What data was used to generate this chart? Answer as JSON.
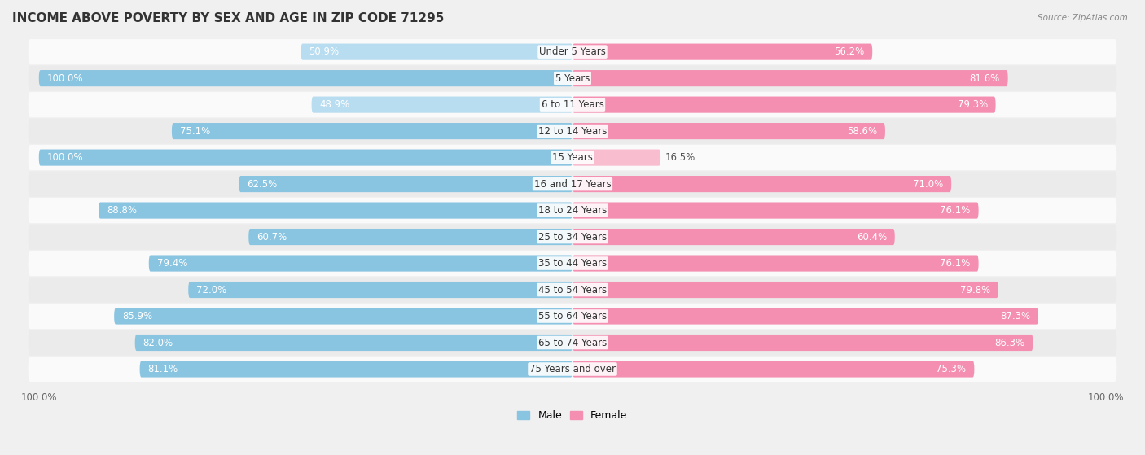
{
  "title": "INCOME ABOVE POVERTY BY SEX AND AGE IN ZIP CODE 71295",
  "source": "Source: ZipAtlas.com",
  "categories": [
    "Under 5 Years",
    "5 Years",
    "6 to 11 Years",
    "12 to 14 Years",
    "15 Years",
    "16 and 17 Years",
    "18 to 24 Years",
    "25 to 34 Years",
    "35 to 44 Years",
    "45 to 54 Years",
    "55 to 64 Years",
    "65 to 74 Years",
    "75 Years and over"
  ],
  "male_values": [
    50.9,
    100.0,
    48.9,
    75.1,
    100.0,
    62.5,
    88.8,
    60.7,
    79.4,
    72.0,
    85.9,
    82.0,
    81.1
  ],
  "female_values": [
    56.2,
    81.6,
    79.3,
    58.6,
    16.5,
    71.0,
    76.1,
    60.4,
    76.1,
    79.8,
    87.3,
    86.3,
    75.3
  ],
  "male_color": "#89C4E1",
  "female_color": "#F48FB1",
  "male_color_light": "#B8DCF0",
  "female_color_light": "#F9BDD0",
  "bg_color": "#F0F0F0",
  "row_bg_light": "#FAFAFA",
  "row_bg_dark": "#EBEBEB",
  "legend_male": "Male",
  "legend_female": "Female",
  "title_fontsize": 11,
  "label_fontsize": 8.5,
  "category_fontsize": 8.5,
  "tick_fontsize": 8.5
}
